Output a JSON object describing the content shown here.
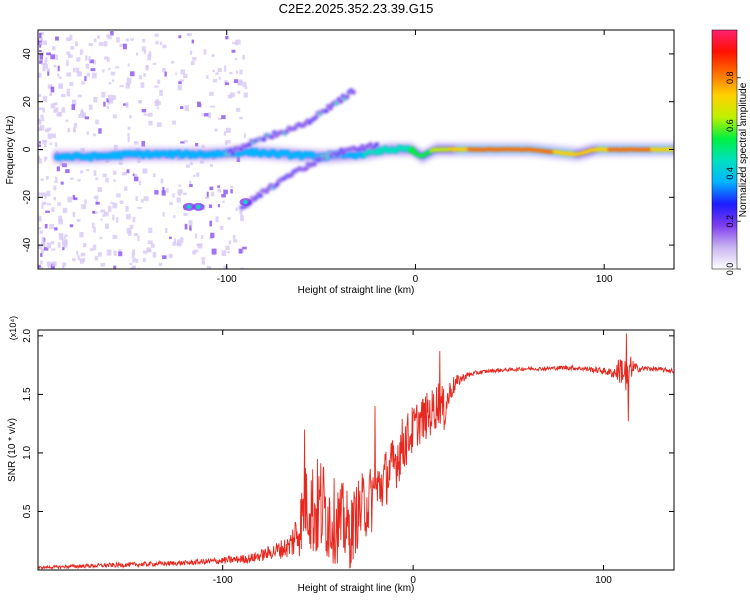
{
  "figure_title": "C2E2.2025.352.23.39.G15",
  "colors": {
    "snr_line": "#e8281e",
    "axis": "#000000",
    "spectrogram_scale": [
      "#ffffff",
      "#c9b5f0",
      "#7e3cf0",
      "#1c1cff",
      "#00b4ff",
      "#00e0c0",
      "#00f040",
      "#c0f000",
      "#ffd000",
      "#ff7000",
      "#ff1000",
      "#ff2070"
    ]
  },
  "chart_data": [
    {
      "id": "spectrogram",
      "type": "heatmap",
      "title": "C2E2.2025.352.23.39.G15",
      "xlabel": "Height of straight line (km)",
      "ylabel": "Frequency (Hz)",
      "xlim": [
        -200,
        137
      ],
      "ylim": [
        -50,
        50
      ],
      "xticks": [
        -100,
        0,
        100
      ],
      "yticks": [
        -40,
        -20,
        0,
        20,
        40
      ],
      "colorbar": {
        "label": "Normalized spectral amplitude",
        "range": [
          0,
          1
        ],
        "ticks": [
          "0.0",
          "0.2",
          "0.4",
          "0.6",
          "0.8"
        ]
      },
      "main_ridge": [
        {
          "x": -185,
          "f": -3,
          "amp": 0.35
        },
        {
          "x": -170,
          "f": -3,
          "amp": 0.35
        },
        {
          "x": -150,
          "f": -2,
          "amp": 0.4
        },
        {
          "x": -130,
          "f": -2,
          "amp": 0.35
        },
        {
          "x": -110,
          "f": -2,
          "amp": 0.4
        },
        {
          "x": -90,
          "f": -1,
          "amp": 0.35
        },
        {
          "x": -70,
          "f": -2,
          "amp": 0.4
        },
        {
          "x": -50,
          "f": -3,
          "amp": 0.35
        },
        {
          "x": -30,
          "f": -2,
          "amp": 0.4
        },
        {
          "x": -15,
          "f": 0,
          "amp": 0.45
        },
        {
          "x": -3,
          "f": 0,
          "amp": 0.5
        },
        {
          "x": 3,
          "f": -3,
          "amp": 0.55
        },
        {
          "x": 10,
          "f": 0,
          "amp": 0.6
        },
        {
          "x": 30,
          "f": 0,
          "amp": 0.8
        },
        {
          "x": 60,
          "f": 0,
          "amp": 0.85
        },
        {
          "x": 85,
          "f": -2,
          "amp": 0.7
        },
        {
          "x": 95,
          "f": 0,
          "amp": 0.7
        },
        {
          "x": 110,
          "f": 0,
          "amp": 0.85
        },
        {
          "x": 130,
          "f": 0,
          "amp": 0.75
        },
        {
          "x": 137,
          "f": 0,
          "amp": 0.7
        }
      ],
      "upper_branch": [
        {
          "x": -100,
          "f": -2
        },
        {
          "x": -80,
          "f": 5
        },
        {
          "x": -60,
          "f": 10
        },
        {
          "x": -45,
          "f": 18
        },
        {
          "x": -32,
          "f": 25
        }
      ],
      "lower_branch": [
        {
          "x": -92,
          "f": -24
        },
        {
          "x": -75,
          "f": -15
        },
        {
          "x": -60,
          "f": -8
        },
        {
          "x": -45,
          "f": -2
        },
        {
          "x": -20,
          "f": 2
        }
      ],
      "isolated_spots": [
        {
          "x": -120,
          "f": -24
        },
        {
          "x": -115,
          "f": -24
        },
        {
          "x": -90,
          "f": -22
        }
      ]
    },
    {
      "id": "snr",
      "type": "line",
      "xlabel": "Height of straight line (km)",
      "ylabel": "SNR (10 * v/v)",
      "y_scale_label": "(x10⁴)",
      "xlim": [
        -197,
        137
      ],
      "ylim": [
        0,
        2.05
      ],
      "xticks": [
        -100,
        0,
        100
      ],
      "yticks": [
        0.5,
        1.0,
        1.5,
        2.0
      ],
      "ytick_labels": [
        "0.5",
        "1.0",
        "1.5",
        "2.0"
      ],
      "series": [
        {
          "name": "SNR",
          "x": [
            -197,
            -180,
            -160,
            -140,
            -120,
            -100,
            -85,
            -75,
            -65,
            -60,
            -56,
            -52,
            -48,
            -44,
            -40,
            -36,
            -33,
            -30,
            -26,
            -22,
            -18,
            -14,
            -10,
            -6,
            -2,
            2,
            6,
            10,
            14,
            16,
            20,
            24,
            28,
            32,
            40,
            50,
            60,
            70,
            80,
            90,
            100,
            105,
            110,
            112,
            114,
            118,
            125,
            137
          ],
          "values": [
            0.02,
            0.03,
            0.04,
            0.05,
            0.06,
            0.08,
            0.1,
            0.15,
            0.2,
            0.35,
            0.6,
            0.5,
            0.55,
            0.45,
            0.4,
            0.4,
            0.3,
            0.45,
            0.55,
            0.6,
            0.7,
            0.8,
            0.9,
            1.05,
            1.15,
            1.25,
            1.3,
            1.35,
            1.45,
            1.35,
            1.55,
            1.62,
            1.66,
            1.68,
            1.7,
            1.71,
            1.72,
            1.72,
            1.73,
            1.72,
            1.7,
            1.68,
            1.72,
            1.6,
            1.73,
            1.72,
            1.72,
            1.7
          ],
          "noise_amplitude": [
            0.01,
            0.015,
            0.02,
            0.02,
            0.02,
            0.03,
            0.04,
            0.06,
            0.1,
            0.25,
            0.35,
            0.45,
            0.45,
            0.4,
            0.35,
            0.35,
            0.3,
            0.3,
            0.3,
            0.3,
            0.25,
            0.25,
            0.25,
            0.25,
            0.22,
            0.2,
            0.2,
            0.2,
            0.2,
            0.2,
            0.1,
            0.05,
            0.03,
            0.02,
            0.015,
            0.015,
            0.015,
            0.015,
            0.02,
            0.02,
            0.03,
            0.04,
            0.15,
            0.2,
            0.1,
            0.03,
            0.02,
            0.02
          ],
          "peaks": [
            {
              "x": -57,
              "y": 1.2
            },
            {
              "x": -20,
              "y": 1.4
            },
            {
              "x": 14,
              "y": 1.87
            },
            {
              "x": 112,
              "y": 2.02
            },
            {
              "x": 113,
              "y": 1.27
            }
          ]
        }
      ]
    }
  ]
}
